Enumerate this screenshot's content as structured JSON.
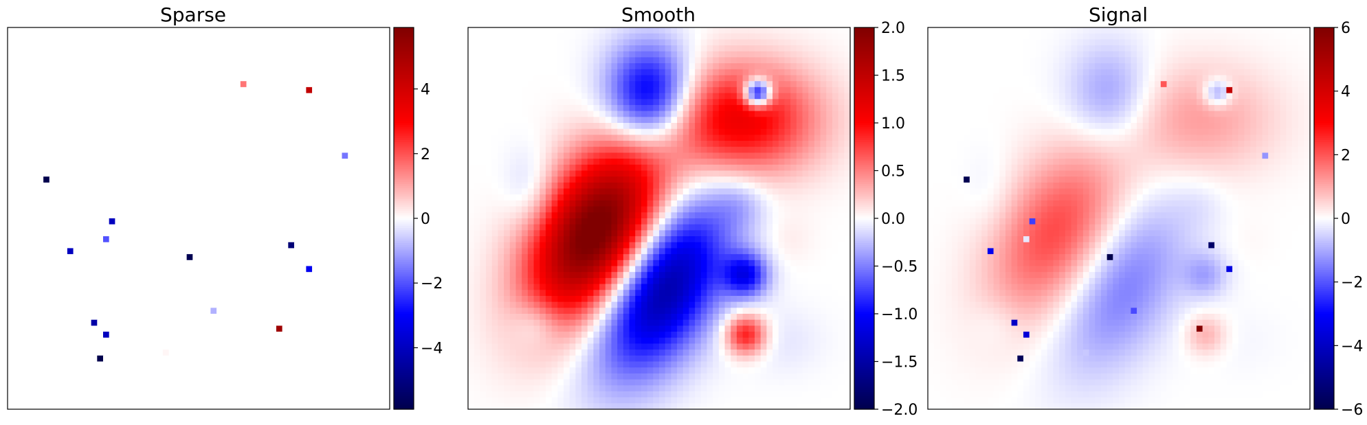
{
  "chart_data": [
    {
      "type": "heatmap",
      "title": "Sparse",
      "grid_size": 64,
      "colormap": "seismic",
      "colorbar": {
        "range": [
          -5.9,
          5.9
        ],
        "ticks": [
          -4,
          -2,
          0,
          2,
          4
        ],
        "tick_labels": [
          "−4",
          "−2",
          "0",
          "2",
          "4"
        ]
      },
      "spikes": [
        {
          "x": 39,
          "y": 9,
          "value": 1.6
        },
        {
          "x": 50,
          "y": 10,
          "value": 4.4
        },
        {
          "x": 56,
          "y": 21,
          "value": -1.6
        },
        {
          "x": 6,
          "y": 25,
          "value": -5.9
        },
        {
          "x": 17,
          "y": 32,
          "value": -4.0
        },
        {
          "x": 16,
          "y": 35,
          "value": -2.0
        },
        {
          "x": 10,
          "y": 37,
          "value": -4.0
        },
        {
          "x": 47,
          "y": 36,
          "value": -5.2
        },
        {
          "x": 30,
          "y": 38,
          "value": -5.8
        },
        {
          "x": 50,
          "y": 40,
          "value": -3.2
        },
        {
          "x": 34,
          "y": 47,
          "value": -0.9
        },
        {
          "x": 14,
          "y": 49,
          "value": -4.4
        },
        {
          "x": 45,
          "y": 50,
          "value": 5.2
        },
        {
          "x": 16,
          "y": 51,
          "value": -4.0
        },
        {
          "x": 15,
          "y": 55,
          "value": -5.9
        },
        {
          "x": 26,
          "y": 54,
          "value": 0.1
        }
      ]
    },
    {
      "type": "heatmap",
      "title": "Smooth",
      "grid_size": 64,
      "colormap": "seismic",
      "colorbar": {
        "range": [
          -2.0,
          2.0
        ],
        "ticks": [
          -2.0,
          -1.5,
          -1.0,
          -0.5,
          0.0,
          0.5,
          1.0,
          1.5,
          2.0
        ],
        "tick_labels": [
          "−2.0",
          "−1.5",
          "−1.0",
          "−0.5",
          "0.0",
          "0.5",
          "1.0",
          "1.5",
          "2.0"
        ]
      },
      "components": [
        {
          "x": 21,
          "y": 34,
          "sx": 6.5,
          "sy": 11,
          "rot": 0.5,
          "amp": 2.2
        },
        {
          "x": 32,
          "y": 43,
          "sx": 6,
          "sy": 11,
          "rot": 0.5,
          "amp": -1.6
        },
        {
          "x": 30,
          "y": 11,
          "sx": 5,
          "sy": 6,
          "rot": 0,
          "amp": -1.3
        },
        {
          "x": 45,
          "y": 15,
          "sx": 9,
          "sy": 6.5,
          "rot": 0,
          "amp": 1.15
        },
        {
          "x": 48,
          "y": 10.5,
          "sx": 1.6,
          "sy": 1.6,
          "rot": 0,
          "amp": -1.6
        },
        {
          "x": 46,
          "y": 41,
          "sx": 2.6,
          "sy": 2.6,
          "rot": 0,
          "amp": -0.95
        },
        {
          "x": 46,
          "y": 51,
          "sx": 2.4,
          "sy": 2.4,
          "rot": 0,
          "amp": 0.95
        },
        {
          "x": 10,
          "y": 27,
          "sx": 3,
          "sy": 5,
          "rot": 0,
          "amp": -0.25
        },
        {
          "x": 11,
          "y": 49,
          "sx": 3,
          "sy": 3,
          "rot": 0,
          "amp": -0.3
        },
        {
          "x": 45,
          "y": 29,
          "sx": 3,
          "sy": 3,
          "rot": 0,
          "amp": -0.2
        },
        {
          "x": 52,
          "y": 52,
          "sx": 5,
          "sy": 4,
          "rot": 0,
          "amp": -0.1
        },
        {
          "x": 53,
          "y": 35,
          "sx": 3,
          "sy": 3,
          "rot": 0,
          "amp": 0.08
        }
      ]
    },
    {
      "type": "heatmap",
      "title": "Signal",
      "grid_size": 64,
      "colormap": "seismic",
      "colorbar": {
        "range": [
          -6,
          6
        ],
        "ticks": [
          -6,
          -4,
          -2,
          0,
          2,
          4,
          6
        ],
        "tick_labels": [
          "−6",
          "−4",
          "−2",
          "0",
          "2",
          "4",
          "6"
        ]
      },
      "composition": "sum of Sparse and Smooth"
    }
  ]
}
